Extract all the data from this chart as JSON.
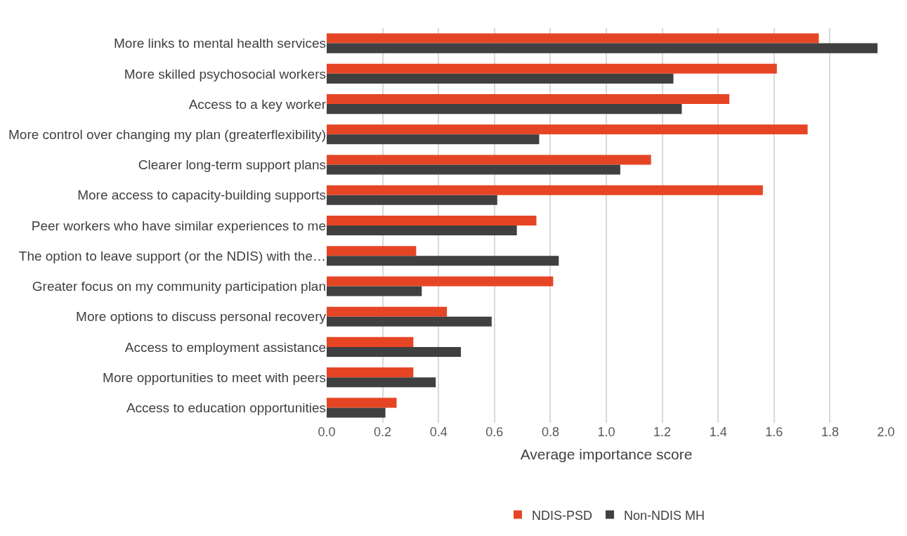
{
  "chart_data": {
    "type": "bar",
    "orientation": "horizontal",
    "xlabel": "Average importance score",
    "categories": [
      "More links to mental health services",
      "More skilled psychosocial workers",
      "Access to a key worker",
      "More control over changing my plan (greaterflexibility)",
      "Clearer long-term support plans",
      "More access to capacity-building supports",
      "Peer workers who have similar experiences to me",
      "The option to leave support (or the NDIS) with the…",
      "Greater focus on my community participation plan",
      "More options to discuss personal recovery",
      "Access to employment assistance",
      "More opportunities to meet with peers",
      "Access to education opportunities"
    ],
    "series": [
      {
        "name": "NDIS-PSD",
        "color": "#e64525",
        "values": [
          1.76,
          1.61,
          1.44,
          1.72,
          1.16,
          1.56,
          0.75,
          0.32,
          0.81,
          0.43,
          0.31,
          0.31,
          0.25
        ]
      },
      {
        "name": "Non-NDIS MH",
        "color": "#404040",
        "values": [
          1.97,
          1.24,
          1.27,
          0.76,
          1.05,
          0.61,
          0.68,
          0.83,
          0.34,
          0.59,
          0.48,
          0.39,
          0.21
        ]
      }
    ],
    "xlim": [
      0,
      2.0
    ],
    "xticks": [
      {
        "value": 0,
        "label": "0.0"
      },
      {
        "value": 0.2,
        "label": "0.2"
      },
      {
        "value": 0.4,
        "label": "0.4"
      },
      {
        "value": 0.6,
        "label": "0.6"
      },
      {
        "value": 0.8,
        "label": "0.8"
      },
      {
        "value": 1.0,
        "label": "1.0"
      },
      {
        "value": 1.2,
        "label": "1.2"
      },
      {
        "value": 1.4,
        "label": "1.4"
      },
      {
        "value": 1.6,
        "label": "1.6"
      },
      {
        "value": 1.8,
        "label": "1.8"
      },
      {
        "value": 2.0,
        "label": "2.0"
      }
    ],
    "grid": "x",
    "legend": "bottom"
  }
}
